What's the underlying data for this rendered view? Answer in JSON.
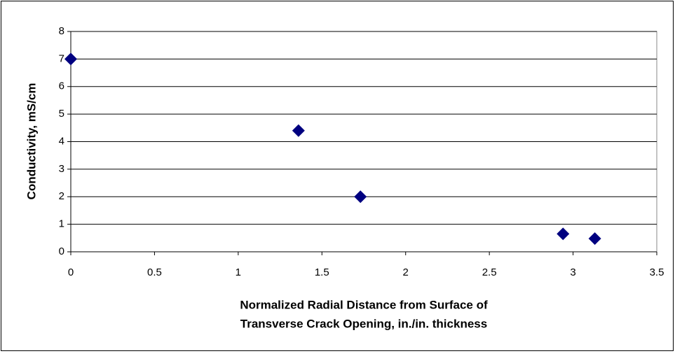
{
  "chart_data": {
    "type": "scatter",
    "x_label": [
      "Normalized Radial Distance from Surface of",
      "Transverse Crack Opening, in./in. thickness"
    ],
    "y_label": "Conductivity, mS/cm",
    "series": [
      {
        "color": "#000080",
        "x": [
          0,
          1.36,
          1.73,
          2.94,
          3.13
        ],
        "values": [
          7,
          4.4,
          2,
          0.65,
          0.48
        ]
      }
    ],
    "xlim": [
      0,
      3.5
    ],
    "xticks": [
      0,
      0.5,
      1,
      1.5,
      2,
      2.5,
      3,
      3.5
    ],
    "ylim": [
      0,
      8
    ],
    "yticks": [
      0,
      1,
      2,
      3,
      4,
      5,
      6,
      7,
      8
    ],
    "grid": true,
    "marker": "diamond"
  }
}
